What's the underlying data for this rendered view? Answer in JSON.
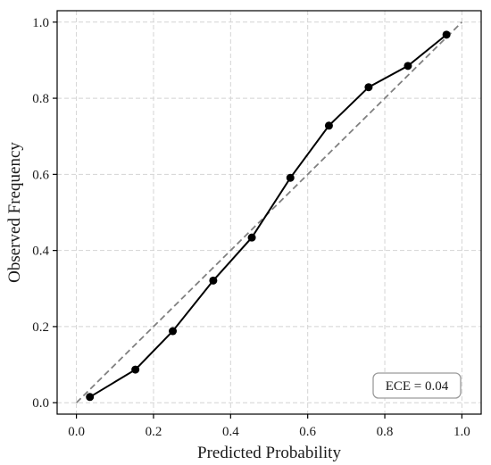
{
  "chart_data": {
    "type": "line",
    "title": "",
    "xlabel": "Predicted Probability",
    "ylabel": "Observed Frequency",
    "xlim": [
      -0.05,
      1.05
    ],
    "ylim": [
      -0.03,
      1.03
    ],
    "xticks": [
      0.0,
      0.2,
      0.4,
      0.6,
      0.8,
      1.0
    ],
    "yticks": [
      0.0,
      0.2,
      0.4,
      0.6,
      0.8,
      1.0
    ],
    "xtick_labels": [
      "0.0",
      "0.2",
      "0.4",
      "0.6",
      "0.8",
      "1.0"
    ],
    "ytick_labels": [
      "0.0",
      "0.2",
      "0.4",
      "0.6",
      "0.8",
      "1.0"
    ],
    "grid": true,
    "series": [
      {
        "color": "#000000",
        "marker": "circle",
        "x": [
          0.035,
          0.153,
          0.25,
          0.355,
          0.455,
          0.555,
          0.655,
          0.758,
          0.86,
          0.96
        ],
        "y": [
          0.015,
          0.087,
          0.188,
          0.321,
          0.434,
          0.591,
          0.728,
          0.829,
          0.885,
          0.967
        ]
      }
    ],
    "reference_line": {
      "style": "dashed",
      "color": "#808080",
      "x": [
        0.0,
        1.0
      ],
      "y": [
        0.0,
        1.0
      ]
    },
    "annotation": {
      "text": "ECE = 0.04",
      "placement": "bottom-right"
    }
  }
}
